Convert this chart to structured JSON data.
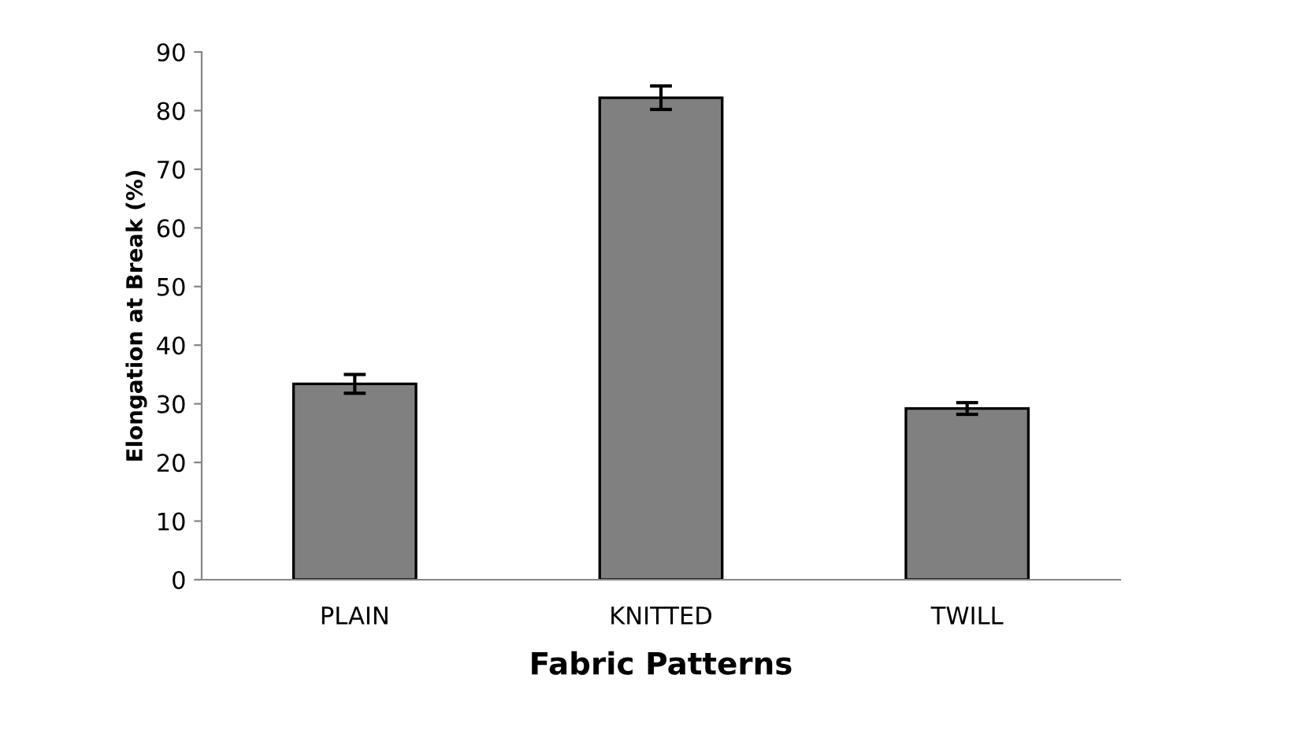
{
  "chart_data": {
    "type": "bar",
    "xlabel": "Fabric Patterns",
    "ylabel": "Elongation at Break (%)",
    "categories": [
      "PLAIN",
      "KNITTED",
      "TWILL"
    ],
    "values": [
      33.4,
      82.2,
      29.2
    ],
    "errors": [
      1.6,
      2.0,
      1.0
    ],
    "color": "#808080",
    "ylim": [
      0,
      90
    ],
    "yticks": [
      0,
      10,
      20,
      30,
      40,
      50,
      60,
      70,
      80,
      90
    ],
    "grid": false,
    "legend": false
  }
}
